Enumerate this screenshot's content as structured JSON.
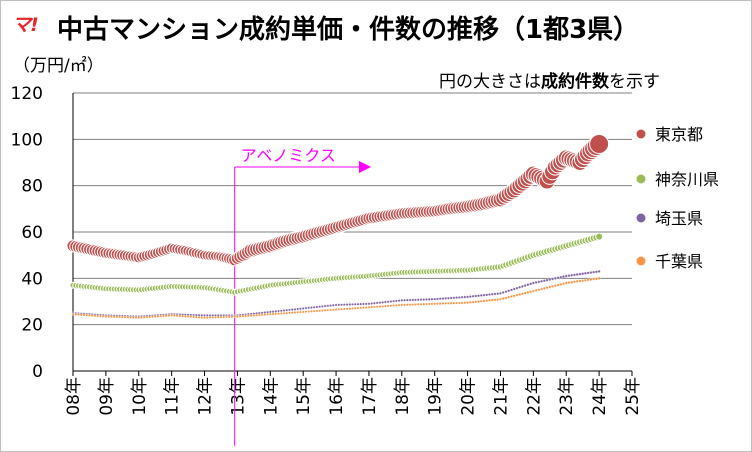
{
  "header": {
    "logo_text": "マ!",
    "title": "中古マンション成約単価・件数の推移（1都3県）",
    "unit": "（万円/㎡）",
    "note_prefix": "円の大きさは",
    "note_bold": "成約件数",
    "note_suffix": "を示す"
  },
  "chart_data": {
    "type": "scatter",
    "title": "中古マンション成約単価・件数の推移（1都3県）",
    "ylabel": "（万円/㎡）",
    "ylim": [
      0,
      120
    ],
    "yticks": [
      0,
      20,
      40,
      60,
      80,
      100,
      120
    ],
    "xticks": [
      "08年",
      "09年",
      "10年",
      "11年",
      "12年",
      "13年",
      "14年",
      "15年",
      "16年",
      "17年",
      "18年",
      "19年",
      "20年",
      "21年",
      "22年",
      "23年",
      "24年",
      "25年"
    ],
    "x_start": "2008-01",
    "x_end": "2025-01",
    "grid": "horizontal",
    "legend_position": "right",
    "note": "円の大きさは成約件数を示す",
    "annotation": {
      "text": "アベノミクス",
      "x": "2012-12",
      "color": "#ff00ff"
    },
    "series": [
      {
        "name": "東京都",
        "color": "#c0504d",
        "size_scale": 1.0,
        "anchors": [
          [
            "2008-01",
            54.0
          ],
          [
            "2009-01",
            51.0
          ],
          [
            "2010-01",
            49.0
          ],
          [
            "2010-06",
            50.5
          ],
          [
            "2011-01",
            53.0
          ],
          [
            "2011-06",
            52.0
          ],
          [
            "2012-01",
            50.0
          ],
          [
            "2012-06",
            49.5
          ],
          [
            "2012-12",
            48.0
          ],
          [
            "2013-06",
            52.0
          ],
          [
            "2014-01",
            54.0
          ],
          [
            "2014-06",
            56.0
          ],
          [
            "2015-01",
            58.0
          ],
          [
            "2016-01",
            62.0
          ],
          [
            "2017-01",
            66.0
          ],
          [
            "2018-01",
            68.0
          ],
          [
            "2019-01",
            69.0
          ],
          [
            "2019-06",
            70.0
          ],
          [
            "2020-01",
            71.0
          ],
          [
            "2020-06",
            72.0
          ],
          [
            "2021-01",
            74.0
          ],
          [
            "2021-06",
            78.0
          ],
          [
            "2022-01",
            85.0
          ],
          [
            "2022-06",
            82.0
          ],
          [
            "2022-09",
            88.0
          ],
          [
            "2023-01",
            92.0
          ],
          [
            "2023-06",
            90.0
          ],
          [
            "2023-09",
            94.0
          ],
          [
            "2024-01",
            98.0
          ]
        ],
        "volume": [
          [
            "2008-01",
            6.0
          ],
          [
            "2012-06",
            5.0
          ],
          [
            "2013-06",
            7.0
          ],
          [
            "2015-01",
            6.5
          ],
          [
            "2017-01",
            6.0
          ],
          [
            "2019-01",
            6.0
          ],
          [
            "2020-06",
            7.0
          ],
          [
            "2022-01",
            8.0
          ],
          [
            "2023-06",
            8.0
          ],
          [
            "2024-01",
            9.5
          ]
        ]
      },
      {
        "name": "神奈川県",
        "color": "#9bbb59",
        "size_scale": 1.0,
        "anchors": [
          [
            "2008-01",
            37.0
          ],
          [
            "2009-01",
            35.5
          ],
          [
            "2010-01",
            35.0
          ],
          [
            "2011-01",
            36.5
          ],
          [
            "2012-01",
            36.0
          ],
          [
            "2012-12",
            34.0
          ],
          [
            "2014-01",
            37.0
          ],
          [
            "2015-01",
            38.5
          ],
          [
            "2016-01",
            40.0
          ],
          [
            "2017-01",
            41.0
          ],
          [
            "2018-01",
            42.5
          ],
          [
            "2019-01",
            43.0
          ],
          [
            "2020-01",
            43.5
          ],
          [
            "2021-01",
            45.0
          ],
          [
            "2022-01",
            50.0
          ],
          [
            "2023-01",
            54.0
          ],
          [
            "2024-01",
            58.0
          ]
        ],
        "volume": [
          [
            "2008-01",
            3.0
          ],
          [
            "2012-12",
            3.0
          ],
          [
            "2016-01",
            3.0
          ],
          [
            "2020-01",
            3.0
          ],
          [
            "2022-01",
            3.5
          ],
          [
            "2024-01",
            3.5
          ]
        ]
      },
      {
        "name": "埼玉県",
        "color": "#8064a2",
        "size_scale": 1.0,
        "anchors": [
          [
            "2008-01",
            25.0
          ],
          [
            "2009-01",
            24.0
          ],
          [
            "2010-01",
            23.5
          ],
          [
            "2011-01",
            24.5
          ],
          [
            "2012-01",
            24.0
          ],
          [
            "2013-01",
            24.0
          ],
          [
            "2014-01",
            25.5
          ],
          [
            "2015-01",
            27.0
          ],
          [
            "2016-01",
            28.5
          ],
          [
            "2017-01",
            29.0
          ],
          [
            "2018-01",
            30.5
          ],
          [
            "2019-01",
            31.0
          ],
          [
            "2020-01",
            32.0
          ],
          [
            "2021-01",
            33.5
          ],
          [
            "2022-01",
            38.0
          ],
          [
            "2023-01",
            41.0
          ],
          [
            "2024-01",
            43.0
          ]
        ],
        "volume": [
          [
            "2008-01",
            1.2
          ],
          [
            "2016-01",
            1.2
          ],
          [
            "2024-01",
            1.3
          ]
        ]
      },
      {
        "name": "千葉県",
        "color": "#f79646",
        "size_scale": 1.0,
        "anchors": [
          [
            "2008-01",
            24.5
          ],
          [
            "2009-01",
            23.5
          ],
          [
            "2010-01",
            23.0
          ],
          [
            "2011-01",
            24.0
          ],
          [
            "2012-01",
            23.0
          ],
          [
            "2013-01",
            23.5
          ],
          [
            "2014-01",
            24.5
          ],
          [
            "2015-01",
            25.5
          ],
          [
            "2016-01",
            26.5
          ],
          [
            "2017-01",
            27.5
          ],
          [
            "2018-01",
            28.5
          ],
          [
            "2019-01",
            29.0
          ],
          [
            "2020-01",
            29.5
          ],
          [
            "2021-01",
            31.0
          ],
          [
            "2022-01",
            34.5
          ],
          [
            "2023-01",
            38.0
          ],
          [
            "2024-01",
            40.0
          ]
        ],
        "volume": [
          [
            "2008-01",
            1.2
          ],
          [
            "2016-01",
            1.2
          ],
          [
            "2024-01",
            1.3
          ]
        ]
      }
    ]
  }
}
